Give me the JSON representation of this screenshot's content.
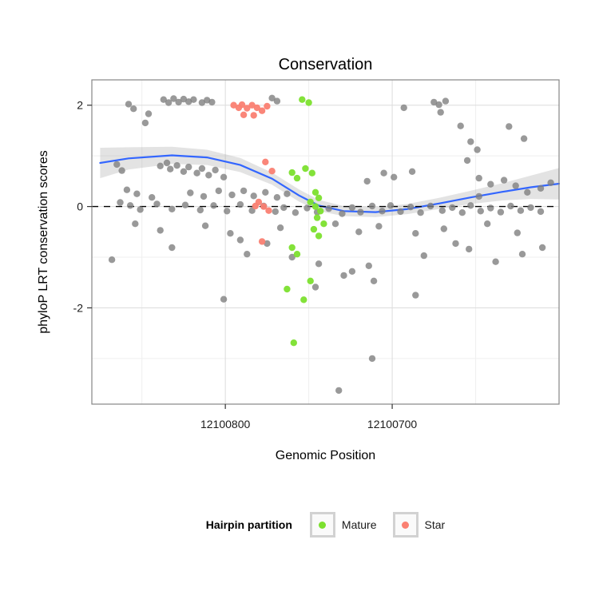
{
  "legend": {
    "title": "Hairpin partition",
    "items": [
      {
        "label": "Mature",
        "color": "#7CE02E"
      },
      {
        "label": "Star",
        "color": "#FA8072"
      }
    ]
  },
  "chart_data": {
    "type": "scatter",
    "title": "Conservation",
    "xlabel": "Genomic Position",
    "ylabel": "phyloP LRT conservation scores",
    "x_axis": {
      "domain": [
        12100880,
        12100600
      ],
      "reversed": true,
      "ticks": [
        {
          "value": 12100800,
          "label": "12100800"
        },
        {
          "value": 12100700,
          "label": "12100700"
        }
      ],
      "minor": [
        12100850,
        12100750,
        12100650
      ]
    },
    "y_axis": {
      "domain": [
        2.5,
        -3.9
      ],
      "ticks": [
        {
          "value": 2,
          "label": "2"
        },
        {
          "value": 0,
          "label": "0"
        },
        {
          "value": -2,
          "label": "-2"
        }
      ],
      "minor": [
        1,
        -1,
        -3
      ]
    },
    "hline": {
      "y": 0,
      "style": "dashed",
      "color": "#000000"
    },
    "smooth": {
      "color": "#3366FF",
      "ribbon_color": "#999999",
      "ribbon_opacity": 0.28,
      "line": [
        [
          12100875,
          0.86
        ],
        [
          12100858,
          0.95
        ],
        [
          12100832,
          1.01
        ],
        [
          12100811,
          0.97
        ],
        [
          12100791,
          0.82
        ],
        [
          12100772,
          0.55
        ],
        [
          12100756,
          0.22
        ],
        [
          12100744,
          0.02
        ],
        [
          12100729,
          -0.09
        ],
        [
          12100710,
          -0.11
        ],
        [
          12100691,
          -0.05
        ],
        [
          12100672,
          0.06
        ],
        [
          12100653,
          0.18
        ],
        [
          12100634,
          0.29
        ],
        [
          12100617,
          0.38
        ],
        [
          12100600,
          0.45
        ]
      ],
      "ribbon": [
        [
          12100875,
          0.56,
          1.16
        ],
        [
          12100858,
          0.73,
          1.17
        ],
        [
          12100832,
          0.84,
          1.18
        ],
        [
          12100811,
          0.82,
          1.12
        ],
        [
          12100791,
          0.68,
          0.96
        ],
        [
          12100772,
          0.43,
          0.67
        ],
        [
          12100756,
          0.1,
          0.34
        ],
        [
          12100744,
          -0.09,
          0.13
        ],
        [
          12100729,
          -0.19,
          0.01
        ],
        [
          12100710,
          -0.21,
          -0.01
        ],
        [
          12100691,
          -0.15,
          0.05
        ],
        [
          12100672,
          -0.05,
          0.17
        ],
        [
          12100653,
          0.05,
          0.31
        ],
        [
          12100634,
          0.12,
          0.46
        ],
        [
          12100617,
          0.15,
          0.61
        ],
        [
          12100600,
          0.14,
          0.76
        ]
      ]
    },
    "series": [
      {
        "name": "other",
        "color": "#808080",
        "opacity": 0.8,
        "points": [
          [
            12100858,
            2.02
          ],
          [
            12100855,
            1.93
          ],
          [
            12100846,
            1.83
          ],
          [
            12100848,
            1.65
          ],
          [
            12100837,
            2.11
          ],
          [
            12100834,
            2.05
          ],
          [
            12100831,
            2.13
          ],
          [
            12100828,
            2.06
          ],
          [
            12100825,
            2.12
          ],
          [
            12100822,
            2.07
          ],
          [
            12100819,
            2.11
          ],
          [
            12100814,
            2.05
          ],
          [
            12100811,
            2.1
          ],
          [
            12100808,
            2.06
          ],
          [
            12100772,
            2.14
          ],
          [
            12100769,
            2.08
          ],
          [
            12100693,
            1.95
          ],
          [
            12100675,
            2.06
          ],
          [
            12100672,
            2.01
          ],
          [
            12100668,
            2.08
          ],
          [
            12100671,
            1.86
          ],
          [
            12100659,
            1.59
          ],
          [
            12100653,
            1.28
          ],
          [
            12100649,
            1.12
          ],
          [
            12100630,
            1.58
          ],
          [
            12100621,
            1.34
          ],
          [
            12100865,
            0.83
          ],
          [
            12100862,
            0.71
          ],
          [
            12100839,
            0.8
          ],
          [
            12100835,
            0.86
          ],
          [
            12100833,
            0.74
          ],
          [
            12100829,
            0.81
          ],
          [
            12100825,
            0.69
          ],
          [
            12100822,
            0.78
          ],
          [
            12100817,
            0.66
          ],
          [
            12100814,
            0.75
          ],
          [
            12100810,
            0.62
          ],
          [
            12100806,
            0.72
          ],
          [
            12100801,
            0.58
          ],
          [
            12100859,
            0.33
          ],
          [
            12100853,
            0.25
          ],
          [
            12100844,
            0.18
          ],
          [
            12100821,
            0.27
          ],
          [
            12100813,
            0.2
          ],
          [
            12100804,
            0.31
          ],
          [
            12100796,
            0.23
          ],
          [
            12100789,
            0.31
          ],
          [
            12100783,
            0.21
          ],
          [
            12100776,
            0.28
          ],
          [
            12100769,
            0.18
          ],
          [
            12100763,
            0.25
          ],
          [
            12100863,
            0.08
          ],
          [
            12100857,
            0.02
          ],
          [
            12100851,
            -0.06
          ],
          [
            12100841,
            0.05
          ],
          [
            12100832,
            -0.05
          ],
          [
            12100824,
            0.03
          ],
          [
            12100815,
            -0.07
          ],
          [
            12100807,
            0.02
          ],
          [
            12100799,
            -0.09
          ],
          [
            12100791,
            0.04
          ],
          [
            12100784,
            -0.08
          ],
          [
            12100777,
            0.01
          ],
          [
            12100770,
            -0.1
          ],
          [
            12100765,
            -0.02
          ],
          [
            12100758,
            -0.12
          ],
          [
            12100751,
            -0.03
          ],
          [
            12100745,
            -0.11
          ],
          [
            12100738,
            -0.04
          ],
          [
            12100730,
            -0.14
          ],
          [
            12100724,
            -0.02
          ],
          [
            12100719,
            -0.11
          ],
          [
            12100712,
            0.01
          ],
          [
            12100706,
            -0.09
          ],
          [
            12100701,
            0.02
          ],
          [
            12100695,
            -0.1
          ],
          [
            12100689,
            -0.01
          ],
          [
            12100683,
            -0.12
          ],
          [
            12100677,
            0.01
          ],
          [
            12100670,
            -0.08
          ],
          [
            12100664,
            -0.02
          ],
          [
            12100658,
            -0.12
          ],
          [
            12100653,
            0.02
          ],
          [
            12100647,
            -0.09
          ],
          [
            12100641,
            -0.03
          ],
          [
            12100635,
            -0.11
          ],
          [
            12100629,
            0.01
          ],
          [
            12100623,
            -0.08
          ],
          [
            12100617,
            -0.02
          ],
          [
            12100611,
            -0.1
          ],
          [
            12100854,
            -0.34
          ],
          [
            12100839,
            -0.47
          ],
          [
            12100812,
            -0.38
          ],
          [
            12100797,
            -0.53
          ],
          [
            12100767,
            -0.42
          ],
          [
            12100734,
            -0.34
          ],
          [
            12100720,
            -0.5
          ],
          [
            12100708,
            -0.39
          ],
          [
            12100686,
            -0.53
          ],
          [
            12100669,
            -0.44
          ],
          [
            12100643,
            -0.34
          ],
          [
            12100625,
            -0.52
          ],
          [
            12100791,
            -0.66
          ],
          [
            12100775,
            -0.73
          ],
          [
            12100868,
            -1.05
          ],
          [
            12100832,
            -0.81
          ],
          [
            12100787,
            -0.94
          ],
          [
            12100760,
            -1.0
          ],
          [
            12100744,
            -1.13
          ],
          [
            12100724,
            -1.28
          ],
          [
            12100714,
            -1.17
          ],
          [
            12100681,
            -0.97
          ],
          [
            12100662,
            -0.73
          ],
          [
            12100654,
            -0.84
          ],
          [
            12100638,
            -1.09
          ],
          [
            12100622,
            -0.94
          ],
          [
            12100610,
            -0.81
          ],
          [
            12100801,
            -1.83
          ],
          [
            12100729,
            -1.36
          ],
          [
            12100711,
            -1.47
          ],
          [
            12100686,
            -1.75
          ],
          [
            12100746,
            -1.59
          ],
          [
            12100732,
            -3.63
          ],
          [
            12100712,
            -3.0
          ],
          [
            12100648,
            0.56
          ],
          [
            12100641,
            0.44
          ],
          [
            12100633,
            0.52
          ],
          [
            12100626,
            0.41
          ],
          [
            12100648,
            0.2
          ],
          [
            12100619,
            0.28
          ],
          [
            12100611,
            0.36
          ],
          [
            12100605,
            0.47
          ],
          [
            12100705,
            0.66
          ],
          [
            12100699,
            0.58
          ],
          [
            12100715,
            0.5
          ],
          [
            12100688,
            0.69
          ],
          [
            12100655,
            0.91
          ]
        ]
      },
      {
        "name": "Mature",
        "color": "#7CE02E",
        "opacity": 0.95,
        "points": [
          [
            12100754,
            2.11
          ],
          [
            12100750,
            2.05
          ],
          [
            12100752,
            0.75
          ],
          [
            12100748,
            0.66
          ],
          [
            12100757,
            0.56
          ],
          [
            12100760,
            0.67
          ],
          [
            12100746,
            0.28
          ],
          [
            12100744,
            0.17
          ],
          [
            12100749,
            0.09
          ],
          [
            12100746,
            0.0
          ],
          [
            12100743,
            -0.09
          ],
          [
            12100745,
            -0.22
          ],
          [
            12100741,
            -0.34
          ],
          [
            12100747,
            -0.45
          ],
          [
            12100744,
            -0.58
          ],
          [
            12100760,
            -0.81
          ],
          [
            12100757,
            -0.94
          ],
          [
            12100763,
            -1.63
          ],
          [
            12100749,
            -1.47
          ],
          [
            12100753,
            -1.84
          ],
          [
            12100759,
            -2.69
          ]
        ]
      },
      {
        "name": "Star",
        "color": "#FA8072",
        "opacity": 0.95,
        "points": [
          [
            12100795,
            2.0
          ],
          [
            12100792,
            1.95
          ],
          [
            12100790,
            2.01
          ],
          [
            12100787,
            1.94
          ],
          [
            12100784,
            2.0
          ],
          [
            12100781,
            1.95
          ],
          [
            12100778,
            1.89
          ],
          [
            12100775,
            1.98
          ],
          [
            12100789,
            1.81
          ],
          [
            12100783,
            1.8
          ],
          [
            12100776,
            0.88
          ],
          [
            12100772,
            0.7
          ],
          [
            12100780,
            0.09
          ],
          [
            12100777,
            0.0
          ],
          [
            12100774,
            -0.08
          ],
          [
            12100782,
            0.01
          ],
          [
            12100778,
            -0.69
          ]
        ]
      }
    ]
  }
}
